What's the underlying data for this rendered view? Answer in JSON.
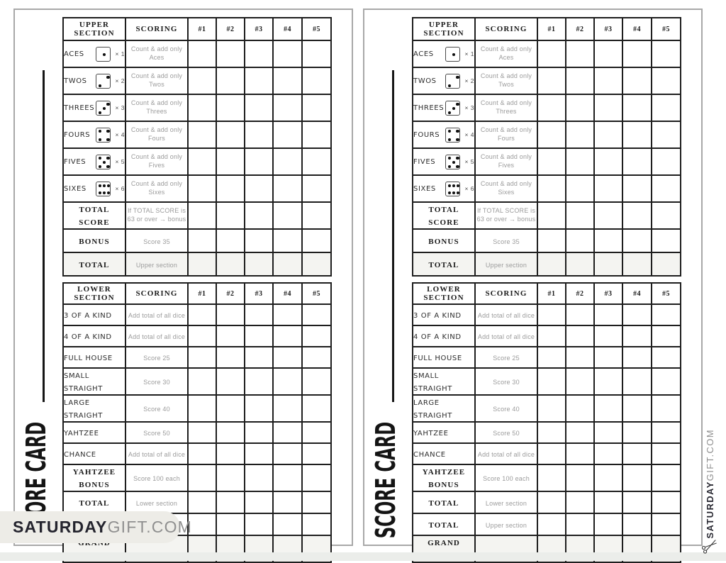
{
  "colors": {
    "line": "#1e1e1e",
    "muted_text": "#9b9b9b",
    "shaded_row": "#f4f4f1",
    "badge_bg": "#edece7"
  },
  "watermark": {
    "bold": "SATURDAY",
    "light": "GIFT.COM"
  },
  "page": {
    "side_title": "SCORE CARD",
    "upper_table": {
      "headers": [
        "UPPER SECTION",
        "SCORING",
        "#1",
        "#2",
        "#3",
        "#4",
        "#5"
      ],
      "rows": [
        {
          "label": "ACES",
          "die": 1,
          "mult": "× 1",
          "scoring": "Count & add only\nAces"
        },
        {
          "label": "TWOS",
          "die": 2,
          "mult": "× 2",
          "scoring": "Count & add only\nTwos"
        },
        {
          "label": "THREES",
          "die": 3,
          "mult": "× 3",
          "scoring": "Count & add only\nThrees"
        },
        {
          "label": "FOURS",
          "die": 4,
          "mult": "× 4",
          "scoring": "Count & add only\nFours"
        },
        {
          "label": "FIVES",
          "die": 5,
          "mult": "× 5",
          "scoring": "Count & add only\nFives"
        },
        {
          "label": "SIXES",
          "die": 6,
          "mult": "× 6",
          "scoring": "Count & add only\nSixes"
        },
        {
          "label": "TOTAL SCORE",
          "style": "stencil",
          "scoring": "If  TOTAL SCORE is\n63 or over → bonus"
        },
        {
          "label": "BONUS",
          "style": "stencil",
          "scoring": "Score 35"
        },
        {
          "label": "TOTAL",
          "style": "stencil",
          "shaded": true,
          "scoring": "Upper section"
        }
      ]
    },
    "lower_table": {
      "headers": [
        "LOWER SECTION",
        "SCORING",
        "#1",
        "#2",
        "#3",
        "#4",
        "#5"
      ],
      "rows": [
        {
          "label": "3 OF A KIND",
          "scoring": "Add total of  all dice"
        },
        {
          "label": "4 OF A KIND",
          "scoring": "Add total of  all dice"
        },
        {
          "label": "FULL HOUSE",
          "scoring": "Score 25"
        },
        {
          "label": "SMALL STRAIGHT",
          "scoring": "Score 30"
        },
        {
          "label": "LARGE STRAIGHT",
          "scoring": "Score 40"
        },
        {
          "label": "YAHTZEE",
          "scoring": "Score 50"
        },
        {
          "label": "CHANCE",
          "scoring": "Add total of  all dice"
        },
        {
          "label": "YAHTZEE BONUS",
          "style": "stencil",
          "scoring": "Score 100 each"
        },
        {
          "label": "TOTAL",
          "style": "stencil",
          "scoring": "Lower section"
        },
        {
          "label": "TOTAL",
          "style": "stencil",
          "scoring": "Upper section"
        },
        {
          "label": "GRAND TOTAL",
          "style": "stencil",
          "shaded": true,
          "scoring": ""
        }
      ]
    }
  }
}
